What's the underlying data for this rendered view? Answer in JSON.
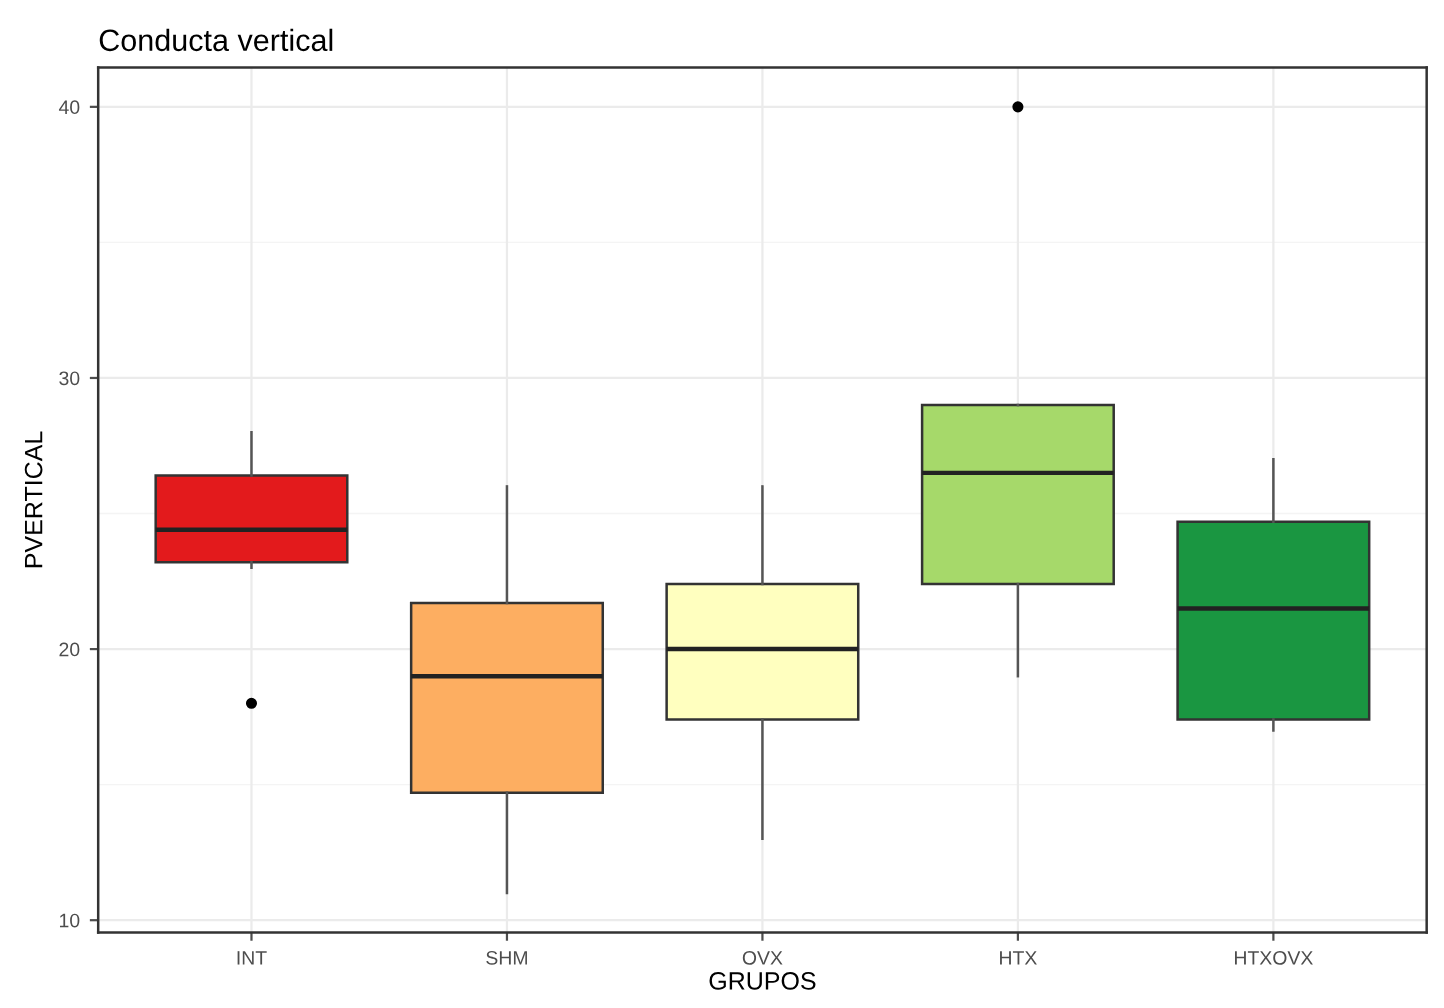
{
  "chart_data": {
    "type": "box",
    "title": "Conducta vertical",
    "xlabel": "GRUPOS",
    "ylabel": "PVERTICAL",
    "categories": [
      "INT",
      "SHM",
      "OVX",
      "HTX",
      "HTXOVX"
    ],
    "colors": [
      "#e31a1c",
      "#fdae61",
      "#ffffbf",
      "#a6d96a",
      "#1a9641"
    ],
    "boxes": [
      {
        "low": 23,
        "q1": 23.2,
        "median": 24.4,
        "q3": 26.4,
        "high": 28,
        "outliers": [
          18
        ]
      },
      {
        "low": 11,
        "q1": 14.7,
        "median": 19,
        "q3": 21.7,
        "high": 26
      },
      {
        "low": 13,
        "q1": 17.4,
        "median": 20,
        "q3": 22.4,
        "high": 26
      },
      {
        "low": 19,
        "q1": 22.4,
        "median": 26.5,
        "q3": 29,
        "high": 29,
        "outliers": [
          40
        ]
      },
      {
        "low": 17,
        "q1": 17.4,
        "median": 21.5,
        "q3": 24.7,
        "high": 27
      }
    ],
    "ylim": [
      9.55,
      41.45
    ],
    "yticks": [
      10,
      20,
      30,
      40
    ],
    "grid": true
  }
}
